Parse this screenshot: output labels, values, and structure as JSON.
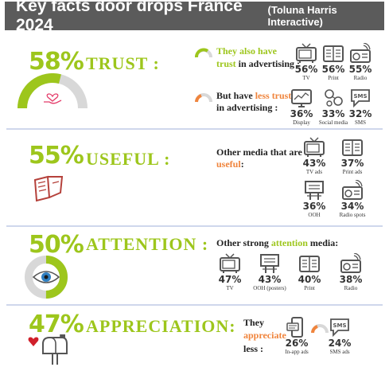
{
  "header": {
    "title": "Key facts door drops France 2024",
    "source": "(Toluna Harris Interactive)"
  },
  "trust": {
    "pct": "58%",
    "label": "TRUST :",
    "gauge_fraction": 0.58,
    "also_line1": "They also have",
    "also_line2_highlight": "trust",
    "also_line2_rest": " in advertising :",
    "less_line1_a": "But have ",
    "less_line1_highlight": "less trust",
    "less_line2": "in advertising :",
    "high": [
      {
        "value": "56%",
        "name": "TV",
        "icon": "tv-icon"
      },
      {
        "value": "56%",
        "name": "Print",
        "icon": "print-icon"
      },
      {
        "value": "55%",
        "name": "Radio",
        "icon": "radio-icon"
      }
    ],
    "low": [
      {
        "value": "36%",
        "name": "Display",
        "icon": "display-icon"
      },
      {
        "value": "33%",
        "name": "Social media",
        "icon": "social-media-icon"
      },
      {
        "value": "32%",
        "name": "SMS",
        "icon": "sms-icon"
      }
    ]
  },
  "useful": {
    "pct": "55%",
    "label": "USEFUL :",
    "text_line1": "Other media that are",
    "text_highlight": "useful",
    "text_colon": ":",
    "items": [
      {
        "value": "43%",
        "name": "TV ads",
        "icon": "tv-icon"
      },
      {
        "value": "37%",
        "name": "Print ads",
        "icon": "print-icon"
      },
      {
        "value": "36%",
        "name": "OOH",
        "icon": "billboard-icon"
      },
      {
        "value": "34%",
        "name": "Radio spots",
        "icon": "radio-icon"
      }
    ]
  },
  "attention": {
    "pct": "50%",
    "label": "ATTENTION :",
    "donut_fraction": 0.5,
    "text_a": "Other strong ",
    "text_highlight": "attention",
    "text_b": " media:",
    "items": [
      {
        "value": "47%",
        "name": "TV",
        "icon": "tv-icon"
      },
      {
        "value": "43%",
        "name": "OOH (posters)",
        "icon": "billboard-icon"
      },
      {
        "value": "40%",
        "name": "Print",
        "icon": "print-icon"
      },
      {
        "value": "38%",
        "name": "Radio",
        "icon": "radio-icon"
      }
    ]
  },
  "appreciation": {
    "pct": "47%",
    "label": "APPRECIATION:",
    "text_line1": "They",
    "text_highlight": "appreciate",
    "text_line3": "less :",
    "items": [
      {
        "value": "26%",
        "name": "In-app ads",
        "icon": "phone-icon"
      },
      {
        "value": "24%",
        "name": "SMS ads",
        "icon": "sms-icon"
      }
    ]
  },
  "colors": {
    "header_bg": "#5b5b5b",
    "green": "#9dc61c",
    "orange": "#f0843c",
    "gray_icon": "#555555",
    "separator": "#cfd7ec"
  }
}
